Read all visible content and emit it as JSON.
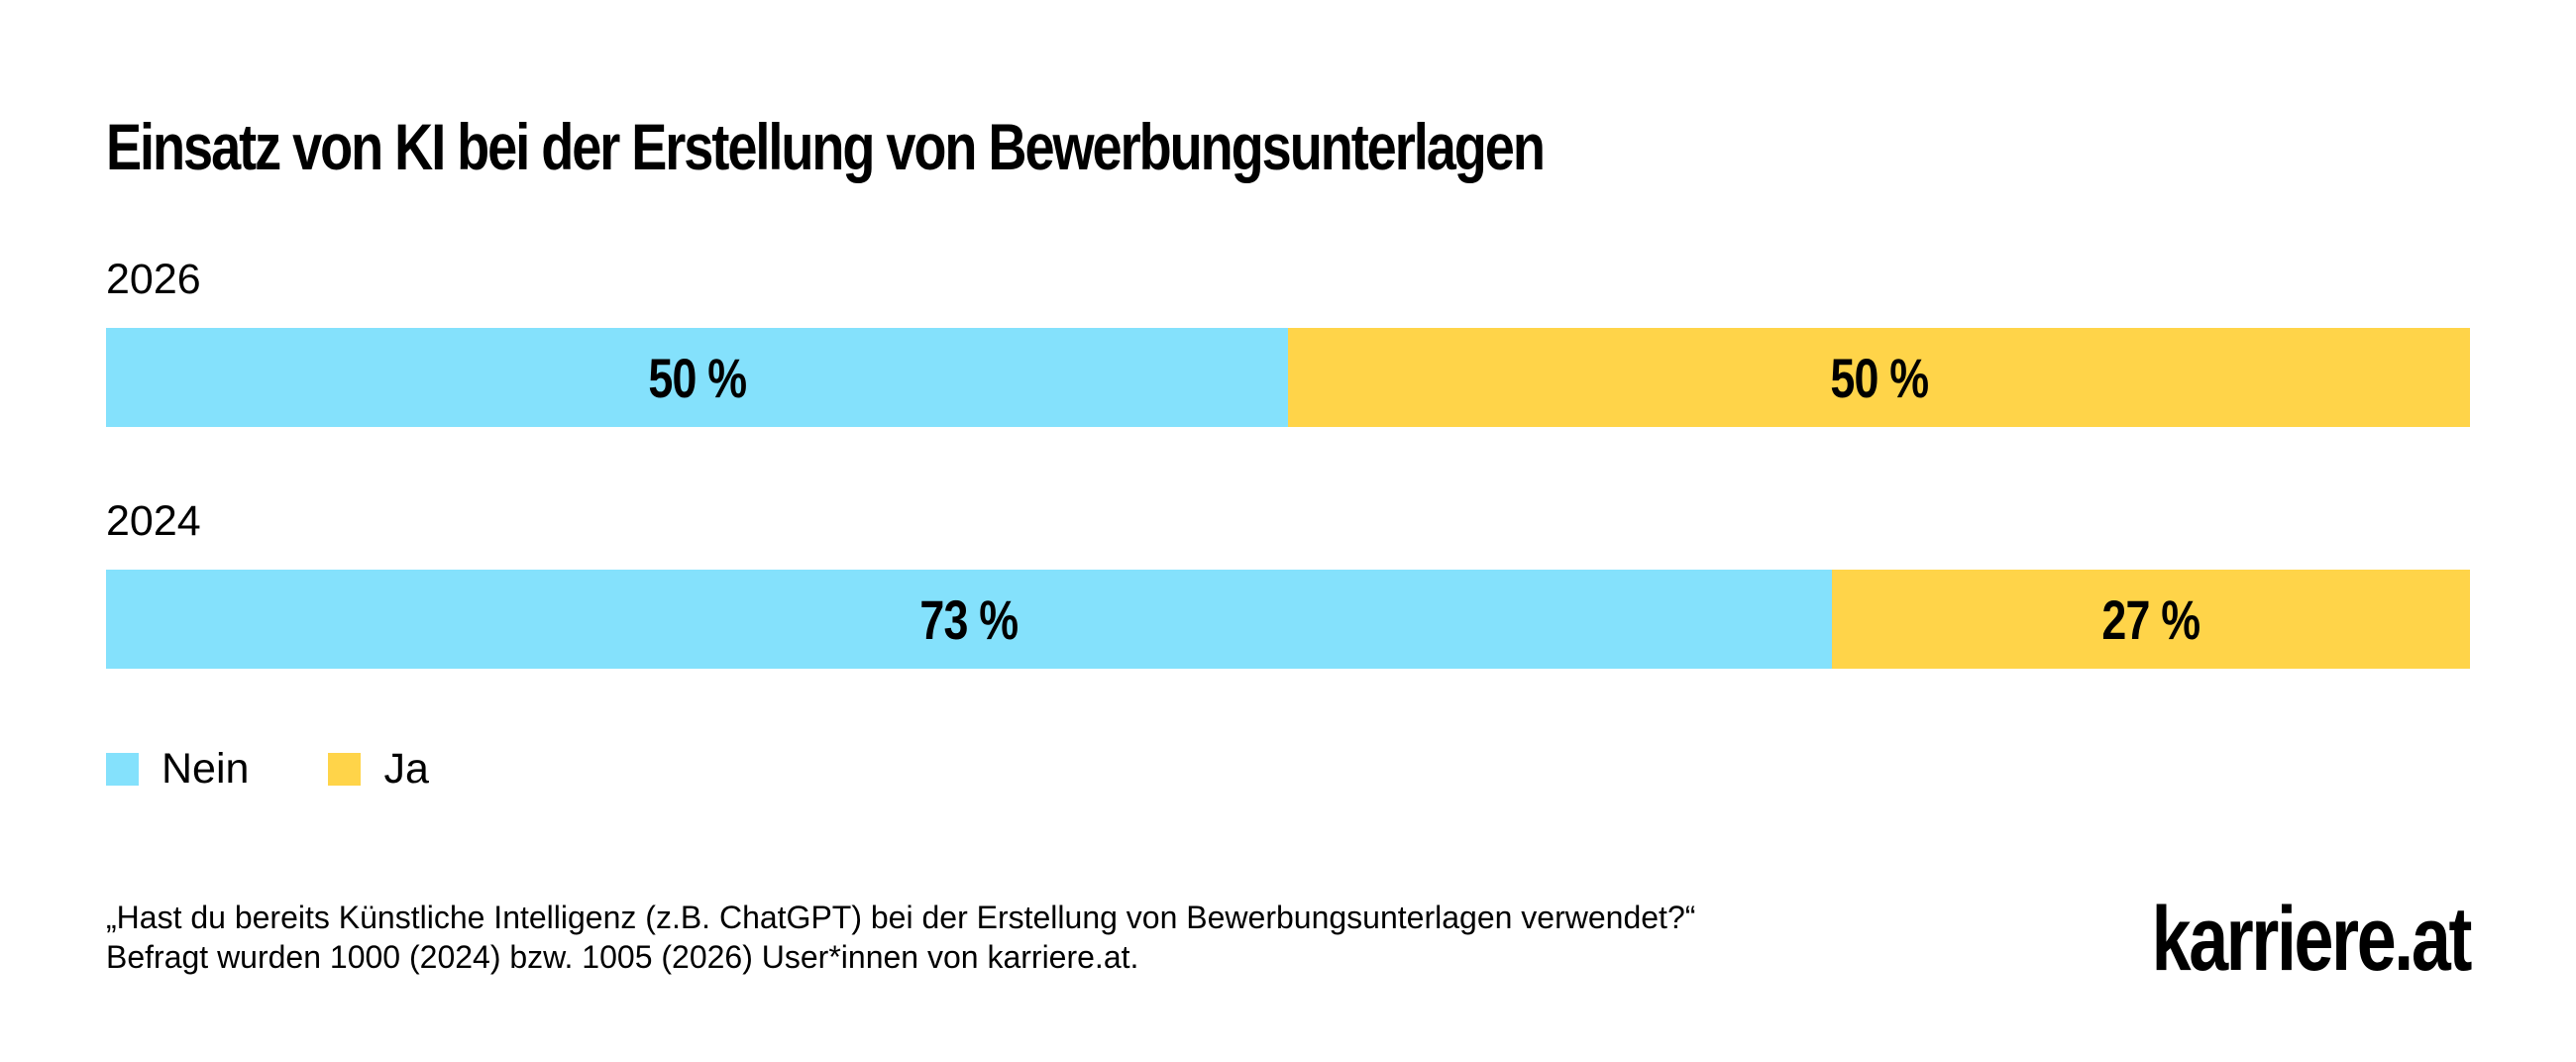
{
  "chart_data": {
    "type": "bar",
    "orientation": "horizontal",
    "stacked": true,
    "normalized": true,
    "title": "Einsatz von KI bei der Erstellung von Bewerbungsunterlagen",
    "categories": [
      "2026",
      "2024"
    ],
    "series": [
      {
        "name": "Nein",
        "color": "#84E1FC",
        "values": [
          50,
          73
        ],
        "labels": [
          "50 %",
          "73 %"
        ]
      },
      {
        "name": "Ja",
        "color": "#FFD449",
        "values": [
          50,
          27
        ],
        "labels": [
          "50 %",
          "27 %"
        ]
      }
    ],
    "xlim": [
      0,
      100
    ],
    "grid": false,
    "legend_position": "bottom-left"
  },
  "footnote": {
    "line1": "„Hast du bereits Künstliche Intelligenz (z.B. ChatGPT) bei der Erstellung von Bewerbungsunterlagen verwendet?“",
    "line2": "Befragt wurden 1000 (2024) bzw. 1005 (2026) User*innen von karriere.at."
  },
  "logo": {
    "text": "karriere.at"
  }
}
